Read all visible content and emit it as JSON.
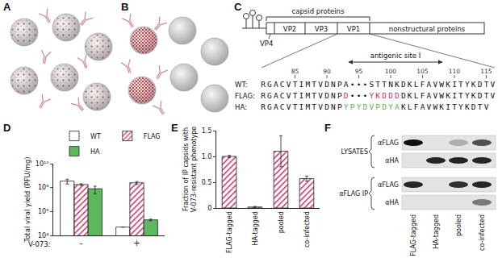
{
  "panel_labels": [
    "A",
    "B",
    "C",
    "D",
    "E",
    "F"
  ],
  "diagram": {
    "genome": {
      "header": "capsid proteins",
      "segments": [
        "VP2",
        "VP3",
        "VP1",
        "nonstructural proteins"
      ],
      "vp4": "VP4"
    },
    "antigenic_site": "antigenic site I",
    "residue_ticks": [
      85,
      90,
      95,
      100,
      105,
      110,
      115
    ],
    "sequences": [
      {
        "name": "WT:",
        "segments": [
          {
            "text": "RGACVTIMTVDNPA•••STTNKDKLFAVWKITYKDTV",
            "color": "#111111"
          }
        ]
      },
      {
        "name": "FLAG:",
        "segments": [
          {
            "text": "RGACVTIMTVDNP",
            "color": "#111111"
          },
          {
            "text": "D",
            "color": "#c8326e"
          },
          {
            "text": "•••",
            "color": "#111111"
          },
          {
            "text": "YKDDD",
            "color": "#c8326e"
          },
          {
            "text": "DKLFAVWKITYKDTV",
            "color": "#111111"
          }
        ]
      },
      {
        "name": "HA:",
        "segments": [
          {
            "text": "RGACVTIMTVDNP",
            "color": "#111111"
          },
          {
            "text": "YPYDVPDYA",
            "color": "#6ab04c"
          },
          {
            "text": "KLFAVWKITYKDTV",
            "color": "#111111"
          }
        ]
      }
    ]
  },
  "chart_data": [
    {
      "type": "bar",
      "categories": [
        "-",
        "+"
      ],
      "x_label": "V-073:",
      "y_label": "Total viral yield (PFU/mg)",
      "log": "y",
      "grid": false,
      "legend": "top",
      "ylim": [
        10000,
        10000000000
      ],
      "yticks": [
        {
          "value": 10000,
          "label": "10⁴"
        },
        {
          "value": 1000000,
          "label": "10⁶"
        },
        {
          "value": 100000000,
          "label": "10⁸"
        },
        {
          "value": 10000000000,
          "label": "10¹⁰"
        }
      ],
      "series": [
        {
          "name": "WT",
          "color": "#ffffff",
          "marker": "solid",
          "values": [
            350000000,
            50000
          ],
          "error": [
            150000000,
            0
          ]
        },
        {
          "name": "FLAG",
          "color": "#eab0c4",
          "marker": "hatched",
          "values": [
            180000000,
            250000000
          ],
          "error": [
            30000000,
            70000000
          ]
        },
        {
          "name": "HA",
          "color": "#5cb85c",
          "marker": "solid",
          "values": [
            80000000,
            200000
          ],
          "error": [
            50000000,
            30000
          ]
        }
      ]
    },
    {
      "type": "bar",
      "categories": [
        "FLAG-tagged",
        "HA-tagged",
        "pooled",
        "co-infected"
      ],
      "y_label": [
        "Fraction of IP capsids with",
        "V-073-resistant phenotype"
      ],
      "grid": false,
      "ylim": [
        0,
        1.5
      ],
      "yticks": [
        0,
        0.5,
        {
          "value": 1,
          "label": "1.0"
        },
        1.5
      ],
      "color": "#eab0c4",
      "marker": "hatched",
      "values": [
        1.0,
        0.02,
        1.1,
        0.57
      ],
      "error": [
        0.02,
        0.01,
        0.3,
        0.05
      ]
    }
  ],
  "blot": {
    "groups": [
      {
        "label": "LYSATES",
        "rows": [
          "αFLAG",
          "αHA"
        ]
      },
      {
        "label": "αFLAG IP",
        "rows": [
          "αFLAG",
          "αHA"
        ]
      }
    ],
    "lanes": [
      "FLAG-tagged",
      "HA-tagged",
      "pooled",
      "co-infected"
    ],
    "band_intensity": [
      [
        1,
        0,
        0.25,
        0.7
      ],
      [
        0,
        0.9,
        0.9,
        0.9
      ],
      [
        0.9,
        0,
        0.85,
        0.9
      ],
      [
        0,
        0,
        0,
        0.5
      ]
    ]
  }
}
